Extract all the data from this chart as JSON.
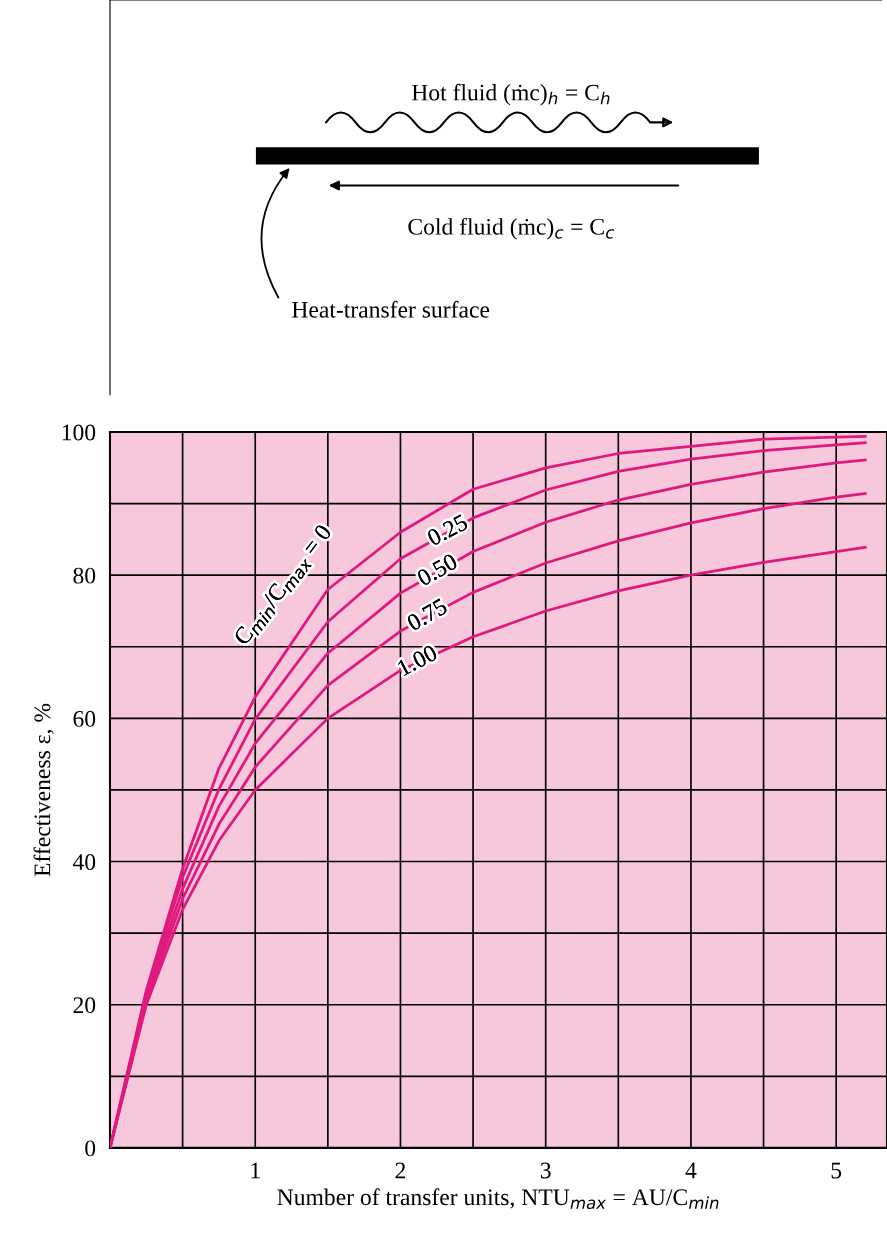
{
  "chart_data": {
    "type": "line",
    "xlabel": "Number of transfer units, NTU$_{max}$ = AU/C$_{min}$",
    "ylabel": "Effectiveness ε, %",
    "x": [
      0,
      0.25,
      0.5,
      0.75,
      1,
      1.5,
      2,
      2.5,
      3,
      3.5,
      4,
      4.5,
      5,
      5.2
    ],
    "series": [
      {
        "name": "C$_{min}$/C$_{max}$ = 0",
        "color": "#e0197f",
        "values": [
          0,
          22,
          39,
          53,
          63,
          78,
          86,
          92,
          95,
          97,
          98,
          99,
          99.3,
          99.4
        ]
      },
      {
        "name": "0.25",
        "color": "#e0197f",
        "values": [
          0,
          21.6,
          37.8,
          50.1,
          59.9,
          73.5,
          82.3,
          88,
          91.9,
          94.5,
          96.2,
          97.4,
          98.2,
          98.5
        ]
      },
      {
        "name": "0.50",
        "color": "#e0197f",
        "values": [
          0,
          21,
          36.2,
          47.7,
          56.5,
          69.1,
          77.5,
          83.3,
          87.4,
          90.5,
          92.7,
          94.4,
          95.7,
          96.1
        ]
      },
      {
        "name": "0.75",
        "color": "#e0197f",
        "values": [
          0,
          20.5,
          34.8,
          45.2,
          53.2,
          64.6,
          72.2,
          77.6,
          81.7,
          84.8,
          87.3,
          89.3,
          90.9,
          91.4
        ]
      },
      {
        "name": "1.00",
        "color": "#e0197f",
        "values": [
          0,
          20,
          33.3,
          42.9,
          50,
          60,
          66.7,
          71.4,
          75,
          77.8,
          80,
          81.8,
          83.3,
          83.9
        ]
      }
    ],
    "xlim": [
      0,
      5.35
    ],
    "ylim": [
      0,
      100
    ],
    "xticks": [
      {
        "value": 0.5,
        "label": null
      },
      1,
      {
        "value": 1.5,
        "label": null
      },
      2,
      {
        "value": 2.5,
        "label": null
      },
      3,
      {
        "value": 3.5,
        "label": null
      },
      4,
      {
        "value": 4.5,
        "label": null
      },
      5
    ],
    "yticks": [
      0,
      {
        "value": 10,
        "label": null
      },
      20,
      {
        "value": 30,
        "label": null
      },
      40,
      {
        "value": 50,
        "label": null
      },
      60,
      {
        "value": 70,
        "label": null
      },
      80,
      {
        "value": 90,
        "label": null
      },
      100
    ],
    "grid": true,
    "legend": false,
    "marker": "none",
    "line_style": "solid",
    "annotations": [
      "Hot fluid (ṁc)$_{h}$ = C$_{h}$",
      "Cold fluid (ṁc)$_{c}$ = C$_{c}$",
      "Heat-transfer surface"
    ]
  }
}
